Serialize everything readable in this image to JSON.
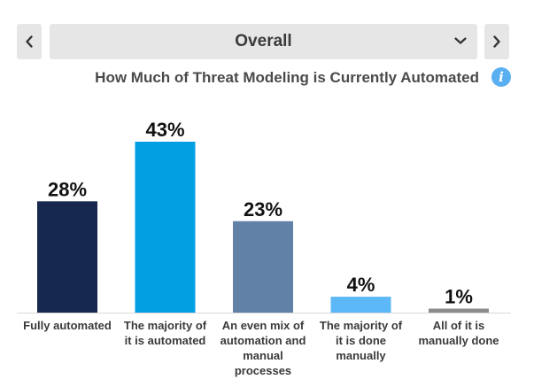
{
  "filter": {
    "selected": "Overall",
    "prev_icon": "chevron-left-icon",
    "next_icon": "chevron-right-icon",
    "dropdown_icon": "chevron-down-icon"
  },
  "info_icon": {
    "glyph": "i",
    "color": "#59aff0"
  },
  "chart_data": {
    "type": "bar",
    "title": "How Much of Threat Modeling is Currently Automated",
    "categories": [
      [
        "Fully automated"
      ],
      [
        "The majority of",
        "it is automated"
      ],
      [
        "An even mix of",
        "automation and",
        "manual",
        "processes"
      ],
      [
        "The majority of",
        "it is done",
        "manually"
      ],
      [
        "All of it is",
        "manually done"
      ]
    ],
    "values": [
      28,
      43,
      23,
      4,
      1
    ],
    "value_labels": [
      "28%",
      "43%",
      "23%",
      "4%",
      "1%"
    ],
    "colors": [
      "#16284d",
      "#039fe3",
      "#6181a7",
      "#5cb8f6",
      "#8c8c8c"
    ],
    "ylim": [
      0,
      43
    ],
    "grid": false,
    "legend": "none"
  }
}
